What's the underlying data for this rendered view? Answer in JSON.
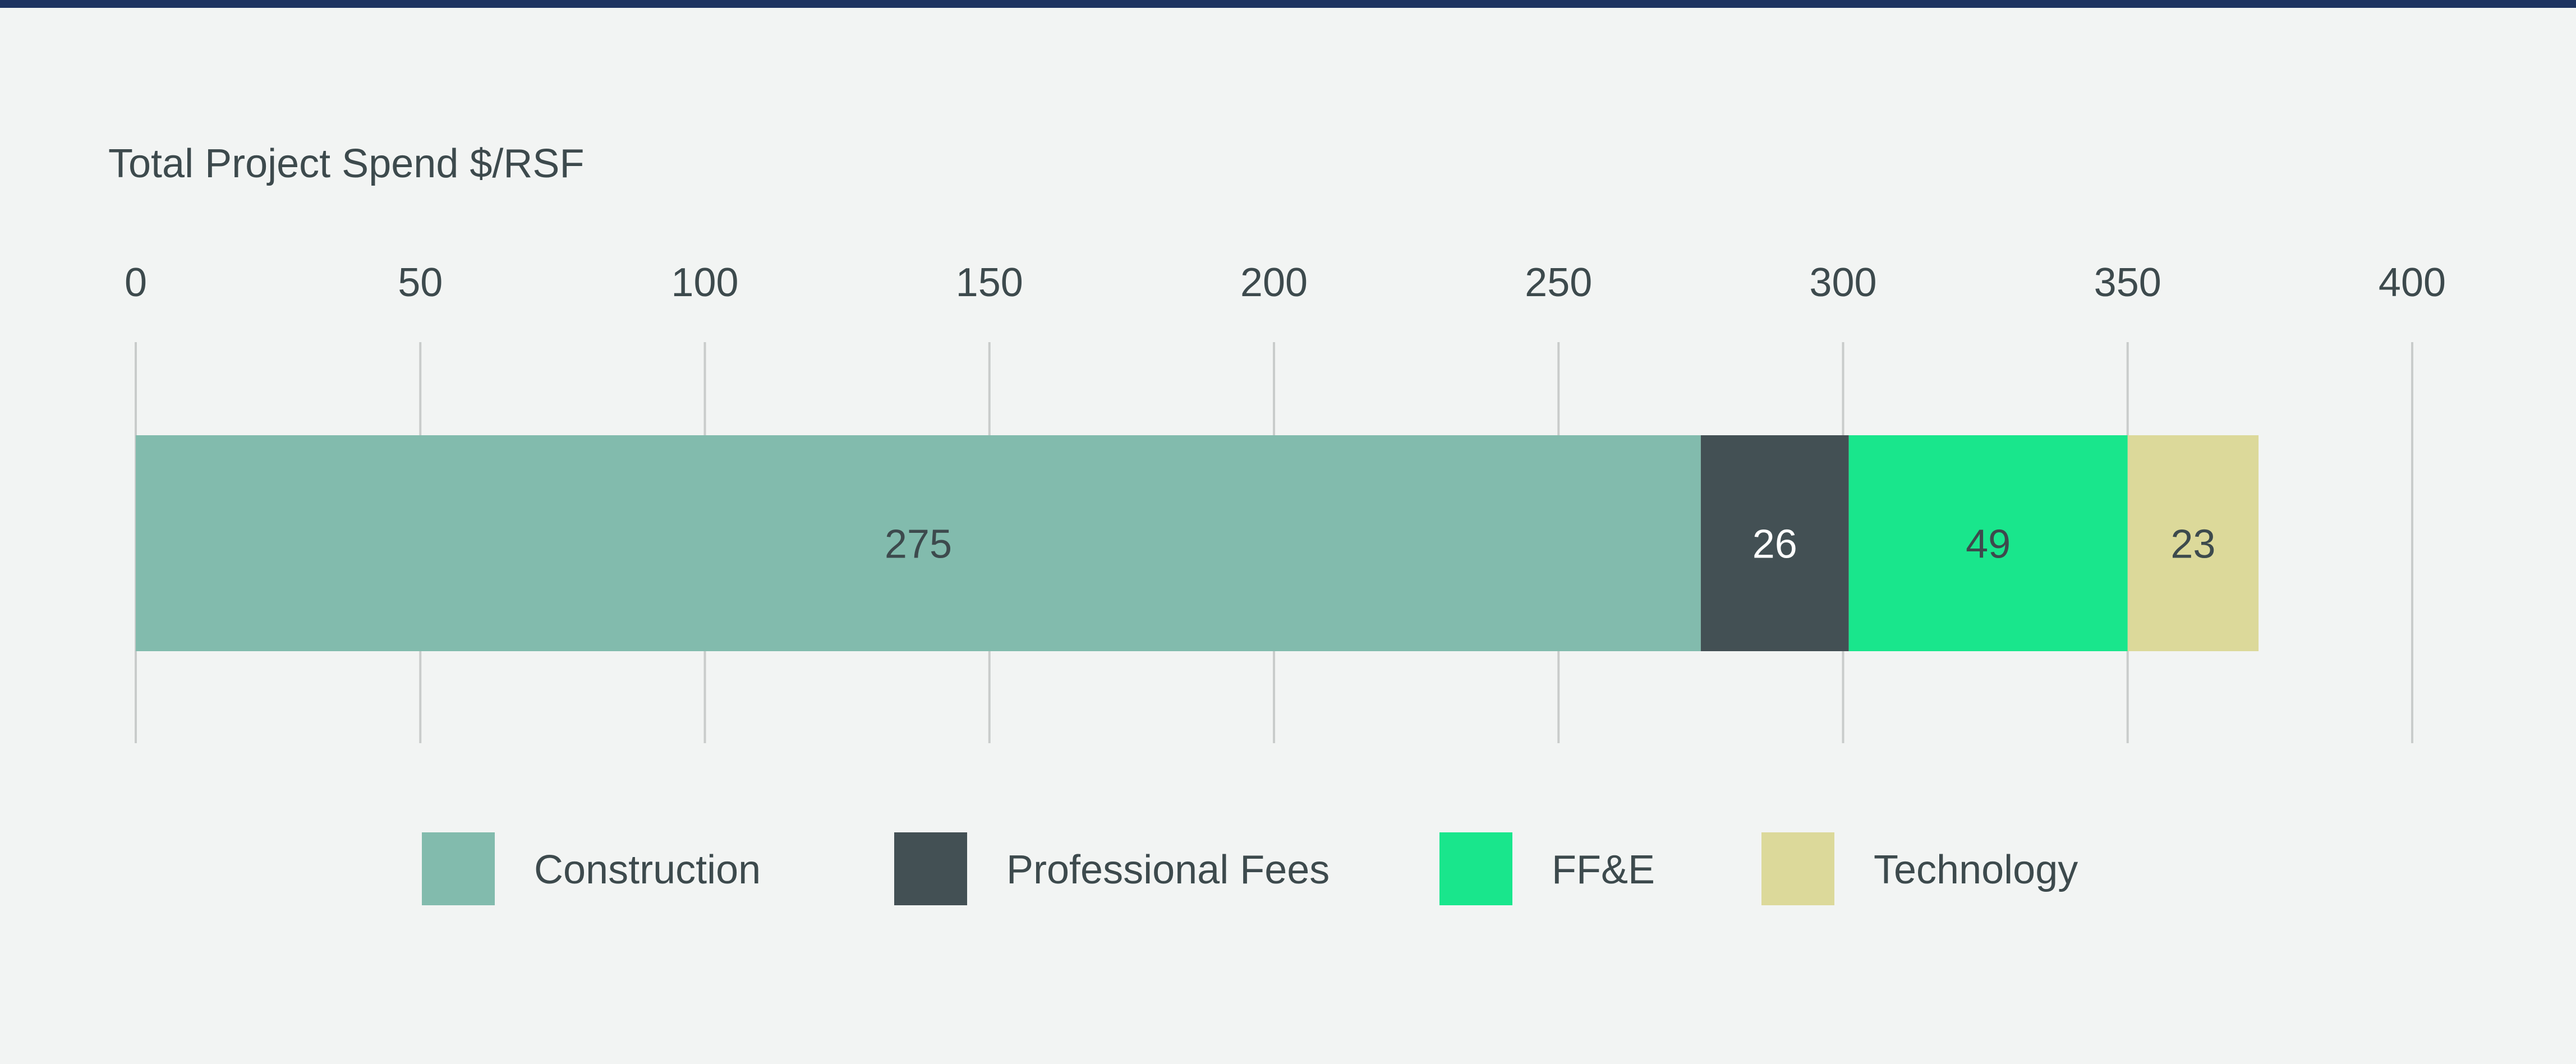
{
  "colors": {
    "background": "#f2f4f3",
    "top_rule": "#1e3461",
    "grid": "#c9cccb",
    "text": "#3d4a4d",
    "label_on_dark": "#ffffff"
  },
  "chart_data": {
    "type": "bar",
    "orientation": "horizontal",
    "stacked": true,
    "title": "Total Project Spend $/RSF",
    "xlim": [
      0,
      400
    ],
    "x_ticks": [
      0,
      50,
      100,
      150,
      200,
      250,
      300,
      350,
      400
    ],
    "grid": true,
    "legend_position": "bottom",
    "series": [
      {
        "name": "Construction",
        "value": 275,
        "label": "275",
        "color": "#82bbad"
      },
      {
        "name": "Professional Fees",
        "value": 26,
        "label": "26",
        "color": "#435054"
      },
      {
        "name": "FF&E",
        "value": 49,
        "label": "49",
        "color": "#19e68c"
      },
      {
        "name": "Technology",
        "value": 23,
        "label": "23",
        "color": "#dcd99a"
      }
    ]
  }
}
